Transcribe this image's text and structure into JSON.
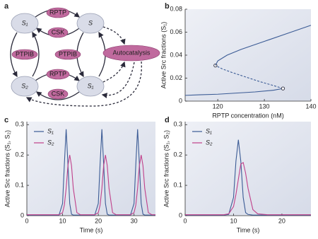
{
  "diagram": {
    "panel_label": "a",
    "nodes": [
      {
        "label": "S₁"
      },
      {
        "label": "S"
      },
      {
        "label": "S₂"
      },
      {
        "label": "S₁"
      },
      {
        "label": "RPTP"
      },
      {
        "label": "CSK"
      },
      {
        "label": "PTPIB"
      },
      {
        "label": "PTPIB"
      },
      {
        "label": "RPTP"
      },
      {
        "label": "CSK"
      },
      {
        "label": "Autocatalysis"
      }
    ]
  },
  "chart_data": [
    {
      "type": "line",
      "panel_label": "b",
      "xlabel": "RPTP concentration (nM)",
      "ylabel": "Active Src fractions (S₁)",
      "xlim": [
        113,
        140
      ],
      "xticks": [
        120,
        130,
        140
      ],
      "ylim": [
        0,
        0.08
      ],
      "yticks": [
        0,
        0.02,
        0.04,
        0.06,
        0.08
      ],
      "series": [
        {
          "color": "#3b5b95",
          "style": "solid",
          "x": [
            113,
            116,
            120,
            124,
            128,
            132,
            134
          ],
          "values": [
            0.005,
            0.0055,
            0.006,
            0.007,
            0.008,
            0.0095,
            0.011
          ]
        },
        {
          "color": "#3b5b95",
          "style": "dashed",
          "markers": "ends",
          "x": [
            134,
            132,
            129,
            126,
            123,
            121,
            119.5
          ],
          "values": [
            0.011,
            0.0135,
            0.017,
            0.021,
            0.025,
            0.028,
            0.031
          ]
        },
        {
          "color": "#3b5b95",
          "style": "solid",
          "x": [
            119.5,
            120,
            122,
            125,
            130,
            135,
            140
          ],
          "values": [
            0.031,
            0.035,
            0.04,
            0.045,
            0.052,
            0.059,
            0.066
          ]
        }
      ]
    },
    {
      "type": "line",
      "panel_label": "c",
      "xlabel": "Time (s)",
      "ylabel": "Active Src fractions (S₁, S₂)",
      "xlim": [
        0,
        36
      ],
      "xticks": [
        0,
        10,
        20,
        30
      ],
      "ylim": [
        0,
        0.31
      ],
      "yticks": [
        0,
        0.1,
        0.2,
        0.3
      ],
      "legend": "upper left",
      "x": [
        0,
        3,
        6,
        8,
        9,
        10,
        10.5,
        11,
        11.5,
        12,
        12.5,
        13,
        14,
        15,
        16.5,
        18,
        19,
        20,
        20.5,
        21,
        21.5,
        22,
        22.5,
        23,
        24,
        25,
        26.5,
        28,
        29,
        30,
        30.5,
        31,
        31.5,
        32,
        32.5,
        33,
        34,
        35,
        36
      ],
      "series": [
        {
          "name": "S₁",
          "color": "#3b5b95",
          "values": [
            0.002,
            0.002,
            0.002,
            0.002,
            0.002,
            0.04,
            0.17,
            0.285,
            0.17,
            0.04,
            0.005,
            0.002,
            0.002,
            0.002,
            0.002,
            0.002,
            0.002,
            0.04,
            0.17,
            0.285,
            0.17,
            0.04,
            0.005,
            0.002,
            0.002,
            0.002,
            0.002,
            0.002,
            0.002,
            0.04,
            0.17,
            0.285,
            0.17,
            0.04,
            0.005,
            0.002,
            0.002,
            0.002,
            0.002
          ]
        },
        {
          "name": "S₂",
          "color": "#c0408a",
          "values": [
            0.003,
            0.003,
            0.003,
            0.003,
            0.003,
            0.01,
            0.035,
            0.09,
            0.165,
            0.2,
            0.165,
            0.09,
            0.01,
            0.003,
            0.003,
            0.003,
            0.003,
            0.01,
            0.035,
            0.09,
            0.165,
            0.2,
            0.165,
            0.09,
            0.01,
            0.003,
            0.003,
            0.003,
            0.003,
            0.01,
            0.035,
            0.09,
            0.165,
            0.2,
            0.165,
            0.09,
            0.01,
            0.003,
            0.003
          ]
        }
      ]
    },
    {
      "type": "line",
      "panel_label": "d",
      "xlabel": "Time (s)",
      "ylabel": "Active Src fractions (S₁, S₂)",
      "xlim": [
        0,
        26
      ],
      "xticks": [
        0,
        10,
        20
      ],
      "ylim": [
        0,
        0.31
      ],
      "yticks": [
        0,
        0.1,
        0.2,
        0.3
      ],
      "legend": "upper left",
      "x": [
        0,
        3,
        6,
        8,
        9,
        10,
        10.5,
        11,
        11.5,
        12,
        12.5,
        13,
        14,
        15,
        17,
        20,
        23,
        26
      ],
      "series": [
        {
          "name": "S₁",
          "color": "#3b5b95",
          "values": [
            0.002,
            0.002,
            0.002,
            0.002,
            0.004,
            0.06,
            0.18,
            0.25,
            0.18,
            0.06,
            0.01,
            0.004,
            0.002,
            0.002,
            0.002,
            0.002,
            0.002,
            0.002
          ]
        },
        {
          "name": "S₂",
          "color": "#c0408a",
          "values": [
            0.003,
            0.003,
            0.003,
            0.003,
            0.006,
            0.03,
            0.07,
            0.12,
            0.17,
            0.175,
            0.14,
            0.09,
            0.02,
            0.006,
            0.003,
            0.003,
            0.003,
            0.003
          ]
        }
      ]
    }
  ]
}
